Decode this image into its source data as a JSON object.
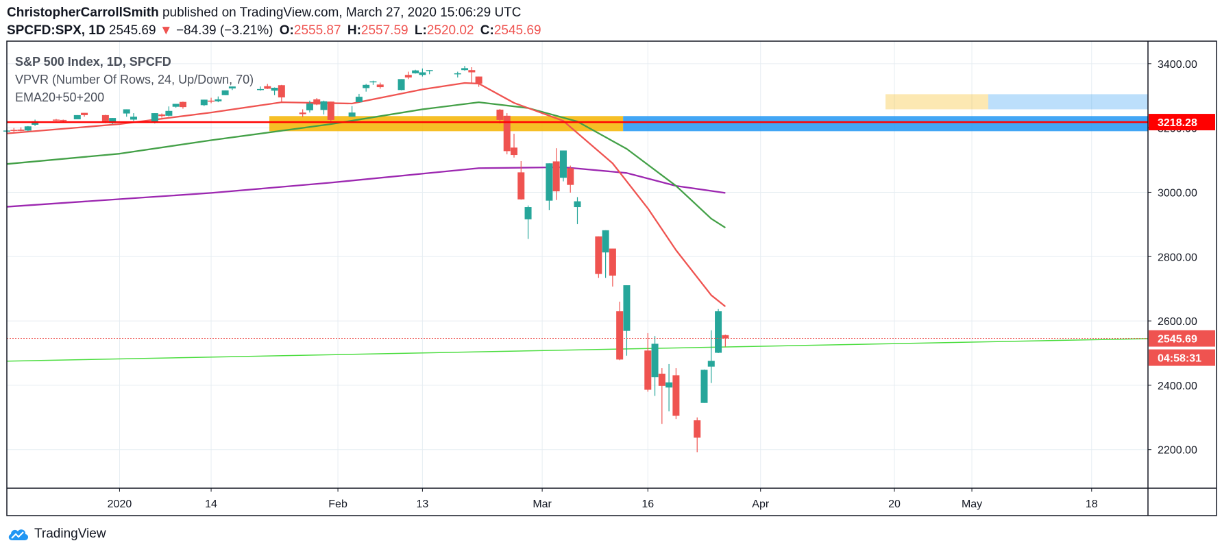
{
  "header": {
    "author": "ChristopherCarrollSmith",
    "published": "published on TradingView.com, March 27, 2020 15:06:29 UTC",
    "symbol": "SPCFD:SPX, 1D",
    "last": "2545.69",
    "change": "−84.39 (−3.21%)",
    "o_label": "O:",
    "o": "2555.87",
    "h_label": "H:",
    "h": "2557.59",
    "l_label": "L:",
    "l": "2520.02",
    "c_label": "C:",
    "c": "2545.69"
  },
  "footer": {
    "brand": "TradingView"
  },
  "colors": {
    "up": "#26a69a",
    "down": "#ef5350",
    "ema20": "#ef5350",
    "ema50": "#43a047",
    "ema200": "#9c27b0",
    "hline": "#ff0000",
    "trend": "#4cdd40",
    "grid": "#e6edf2",
    "axis": "#131722"
  },
  "chart_data": {
    "type": "candlestick",
    "title": "S&P 500 Index, 1D, SPCFD",
    "indicators": [
      "VPVR (Number Of Rows, 24, Up/Down, 70)",
      "EMA20+50+200"
    ],
    "ylim": [
      2080,
      3470
    ],
    "y_ticks": [
      "3400.00",
      "3200.00",
      "3000.00",
      "2800.00",
      "2600.00",
      "2400.00",
      "2200.00"
    ],
    "y_tick_values": [
      3400,
      3200,
      3000,
      2800,
      2600,
      2400,
      2200
    ],
    "x_range": [
      "2019-12-16",
      "2020-05-26"
    ],
    "x_ticks": [
      {
        "label": "2020",
        "date": "2020-01-01"
      },
      {
        "label": "14",
        "date": "2020-01-14"
      },
      {
        "label": "Feb",
        "date": "2020-02-01"
      },
      {
        "label": "13",
        "date": "2020-02-13"
      },
      {
        "label": "Mar",
        "date": "2020-03-01"
      },
      {
        "label": "16",
        "date": "2020-03-16"
      },
      {
        "label": "Apr",
        "date": "2020-04-01"
      },
      {
        "label": "20",
        "date": "2020-04-20"
      },
      {
        "label": "May",
        "date": "2020-05-01"
      },
      {
        "label": "18",
        "date": "2020-05-18"
      }
    ],
    "candles": [
      {
        "date": "2019-12-16",
        "o": 3190,
        "h": 3198,
        "l": 3186,
        "c": 3192
      },
      {
        "date": "2019-12-17",
        "o": 3194,
        "h": 3200,
        "l": 3188,
        "c": 3192
      },
      {
        "date": "2019-12-18",
        "o": 3195,
        "h": 3202,
        "l": 3190,
        "c": 3191
      },
      {
        "date": "2019-12-19",
        "o": 3192,
        "h": 3206,
        "l": 3190,
        "c": 3205
      },
      {
        "date": "2019-12-20",
        "o": 3210,
        "h": 3226,
        "l": 3206,
        "c": 3221
      },
      {
        "date": "2019-12-23",
        "o": 3226,
        "h": 3228,
        "l": 3222,
        "c": 3224
      },
      {
        "date": "2019-12-24",
        "o": 3225,
        "h": 3226,
        "l": 3220,
        "c": 3223
      },
      {
        "date": "2019-12-26",
        "o": 3227,
        "h": 3240,
        "l": 3227,
        "c": 3240
      },
      {
        "date": "2019-12-27",
        "o": 3247,
        "h": 3247,
        "l": 3235,
        "c": 3240
      },
      {
        "date": "2019-12-30",
        "o": 3240,
        "h": 3241,
        "l": 3215,
        "c": 3221
      },
      {
        "date": "2019-12-31",
        "o": 3215,
        "h": 3231,
        "l": 3212,
        "c": 3231
      },
      {
        "date": "2020-01-02",
        "o": 3245,
        "h": 3258,
        "l": 3235,
        "c": 3258
      },
      {
        "date": "2020-01-03",
        "o": 3226,
        "h": 3246,
        "l": 3222,
        "c": 3235
      },
      {
        "date": "2020-01-06",
        "o": 3217,
        "h": 3246,
        "l": 3214,
        "c": 3246
      },
      {
        "date": "2020-01-07",
        "o": 3242,
        "h": 3245,
        "l": 3232,
        "c": 3237
      },
      {
        "date": "2020-01-08",
        "o": 3238,
        "h": 3267,
        "l": 3236,
        "c": 3253
      },
      {
        "date": "2020-01-09",
        "o": 3266,
        "h": 3275,
        "l": 3263,
        "c": 3275
      },
      {
        "date": "2020-01-10",
        "o": 3281,
        "h": 3282,
        "l": 3260,
        "c": 3265
      },
      {
        "date": "2020-01-13",
        "o": 3271,
        "h": 3288,
        "l": 3268,
        "c": 3288
      },
      {
        "date": "2020-01-14",
        "o": 3285,
        "h": 3294,
        "l": 3277,
        "c": 3283
      },
      {
        "date": "2020-01-15",
        "o": 3283,
        "h": 3298,
        "l": 3280,
        "c": 3289
      },
      {
        "date": "2020-01-16",
        "o": 3302,
        "h": 3317,
        "l": 3302,
        "c": 3317
      },
      {
        "date": "2020-01-17",
        "o": 3323,
        "h": 3329,
        "l": 3318,
        "c": 3329
      },
      {
        "date": "2020-01-21",
        "o": 3321,
        "h": 3329,
        "l": 3316,
        "c": 3321
      },
      {
        "date": "2020-01-22",
        "o": 3330,
        "h": 3337,
        "l": 3321,
        "c": 3322
      },
      {
        "date": "2020-01-23",
        "o": 3316,
        "h": 3326,
        "l": 3302,
        "c": 3325
      },
      {
        "date": "2020-01-24",
        "o": 3333,
        "h": 3334,
        "l": 3281,
        "c": 3295
      },
      {
        "date": "2020-01-27",
        "o": 3248,
        "h": 3258,
        "l": 3234,
        "c": 3243
      },
      {
        "date": "2020-01-28",
        "o": 3255,
        "h": 3285,
        "l": 3248,
        "c": 3276
      },
      {
        "date": "2020-01-29",
        "o": 3289,
        "h": 3293,
        "l": 3271,
        "c": 3273
      },
      {
        "date": "2020-01-30",
        "o": 3256,
        "h": 3285,
        "l": 3242,
        "c": 3283
      },
      {
        "date": "2020-01-31",
        "o": 3282,
        "h": 3282,
        "l": 3214,
        "c": 3225
      },
      {
        "date": "2020-02-03",
        "o": 3235,
        "h": 3268,
        "l": 3235,
        "c": 3248
      },
      {
        "date": "2020-02-04",
        "o": 3280,
        "h": 3306,
        "l": 3280,
        "c": 3297
      },
      {
        "date": "2020-02-05",
        "o": 3324,
        "h": 3337,
        "l": 3313,
        "c": 3334
      },
      {
        "date": "2020-02-06",
        "o": 3344,
        "h": 3347,
        "l": 3334,
        "c": 3345
      },
      {
        "date": "2020-02-07",
        "o": 3335,
        "h": 3341,
        "l": 3322,
        "c": 3327
      },
      {
        "date": "2020-02-10",
        "o": 3318,
        "h": 3352,
        "l": 3317,
        "c": 3352
      },
      {
        "date": "2020-02-11",
        "o": 3365,
        "h": 3375,
        "l": 3352,
        "c": 3357
      },
      {
        "date": "2020-02-12",
        "o": 3370,
        "h": 3381,
        "l": 3369,
        "c": 3379
      },
      {
        "date": "2020-02-13",
        "o": 3365,
        "h": 3385,
        "l": 3360,
        "c": 3373
      },
      {
        "date": "2020-02-14",
        "o": 3378,
        "h": 3380,
        "l": 3367,
        "c": 3380
      },
      {
        "date": "2020-02-18",
        "o": 3369,
        "h": 3375,
        "l": 3357,
        "c": 3370
      },
      {
        "date": "2020-02-19",
        "o": 3380,
        "h": 3393,
        "l": 3378,
        "c": 3386
      },
      {
        "date": "2020-02-20",
        "o": 3380,
        "h": 3389,
        "l": 3341,
        "c": 3373
      },
      {
        "date": "2020-02-21",
        "o": 3360,
        "h": 3360,
        "l": 3328,
        "c": 3338
      },
      {
        "date": "2020-02-24",
        "o": 3257,
        "h": 3259,
        "l": 3214,
        "c": 3225
      },
      {
        "date": "2020-02-25",
        "o": 3238,
        "h": 3246,
        "l": 3118,
        "c": 3128
      },
      {
        "date": "2020-02-26",
        "o": 3139,
        "h": 3182,
        "l": 3108,
        "c": 3116
      },
      {
        "date": "2020-02-27",
        "o": 3062,
        "h": 3097,
        "l": 2977,
        "c": 2978
      },
      {
        "date": "2020-02-28",
        "o": 2916,
        "h": 2959,
        "l": 2855,
        "c": 2954
      },
      {
        "date": "2020-03-02",
        "o": 2974,
        "h": 3090,
        "l": 2945,
        "c": 3090
      },
      {
        "date": "2020-03-03",
        "o": 3096,
        "h": 3137,
        "l": 2976,
        "c": 3003
      },
      {
        "date": "2020-03-04",
        "o": 3045,
        "h": 3130,
        "l": 3034,
        "c": 3130
      },
      {
        "date": "2020-03-05",
        "o": 3075,
        "h": 3083,
        "l": 2999,
        "c": 3023
      },
      {
        "date": "2020-03-06",
        "o": 2954,
        "h": 2985,
        "l": 2901,
        "c": 2972
      },
      {
        "date": "2020-03-09",
        "o": 2863,
        "h": 2863,
        "l": 2734,
        "c": 2746
      },
      {
        "date": "2020-03-10",
        "o": 2813,
        "h": 2882,
        "l": 2734,
        "c": 2882
      },
      {
        "date": "2020-03-11",
        "o": 2825,
        "h": 2825,
        "l": 2707,
        "c": 2741
      },
      {
        "date": "2020-03-12",
        "o": 2630,
        "h": 2660,
        "l": 2478,
        "c": 2480
      },
      {
        "date": "2020-03-13",
        "o": 2569,
        "h": 2711,
        "l": 2492,
        "c": 2711
      },
      {
        "date": "2020-03-16",
        "o": 2508,
        "h": 2562,
        "l": 2380,
        "c": 2386
      },
      {
        "date": "2020-03-17",
        "o": 2425,
        "h": 2553,
        "l": 2367,
        "c": 2529
      },
      {
        "date": "2020-03-18",
        "o": 2436,
        "h": 2453,
        "l": 2280,
        "c": 2398
      },
      {
        "date": "2020-03-19",
        "o": 2393,
        "h": 2466,
        "l": 2319,
        "c": 2409
      },
      {
        "date": "2020-03-20",
        "o": 2431,
        "h": 2453,
        "l": 2295,
        "c": 2305
      },
      {
        "date": "2020-03-23",
        "o": 2291,
        "h": 2300,
        "l": 2192,
        "c": 2237
      },
      {
        "date": "2020-03-24",
        "o": 2345,
        "h": 2449,
        "l": 2345,
        "c": 2448
      },
      {
        "date": "2020-03-25",
        "o": 2458,
        "h": 2571,
        "l": 2407,
        "c": 2476
      },
      {
        "date": "2020-03-26",
        "o": 2501,
        "h": 2637,
        "l": 2500,
        "c": 2630
      },
      {
        "date": "2020-03-27",
        "o": 2555.87,
        "h": 2557.59,
        "l": 2520.02,
        "c": 2545.69
      }
    ],
    "ema20": [
      [
        "2019-12-16",
        3183
      ],
      [
        "2020-01-01",
        3212
      ],
      [
        "2020-01-14",
        3248
      ],
      [
        "2020-01-24",
        3280
      ],
      [
        "2020-02-03",
        3276
      ],
      [
        "2020-02-13",
        3320
      ],
      [
        "2020-02-19",
        3340
      ],
      [
        "2020-02-21",
        3338
      ],
      [
        "2020-02-26",
        3278
      ],
      [
        "2020-03-04",
        3222
      ],
      [
        "2020-03-11",
        3090
      ],
      [
        "2020-03-16",
        2950
      ],
      [
        "2020-03-20",
        2820
      ],
      [
        "2020-03-25",
        2680
      ],
      [
        "2020-03-27",
        2645
      ]
    ],
    "ema50": [
      [
        "2019-12-16",
        3088
      ],
      [
        "2020-01-01",
        3120
      ],
      [
        "2020-01-14",
        3162
      ],
      [
        "2020-01-31",
        3212
      ],
      [
        "2020-02-13",
        3258
      ],
      [
        "2020-02-21",
        3280
      ],
      [
        "2020-02-28",
        3262
      ],
      [
        "2020-03-06",
        3220
      ],
      [
        "2020-03-13",
        3135
      ],
      [
        "2020-03-20",
        3020
      ],
      [
        "2020-03-25",
        2918
      ],
      [
        "2020-03-27",
        2890
      ]
    ],
    "ema200": [
      [
        "2019-12-16",
        2955
      ],
      [
        "2020-01-14",
        2998
      ],
      [
        "2020-01-31",
        3030
      ],
      [
        "2020-02-21",
        3075
      ],
      [
        "2020-03-04",
        3078
      ],
      [
        "2020-03-13",
        3060
      ],
      [
        "2020-03-20",
        3020
      ],
      [
        "2020-03-27",
        2998
      ]
    ],
    "horizontal_line": {
      "value": 3218.28,
      "label": "3218.28"
    },
    "last_price": {
      "value": 2545.69,
      "label": "2545.69",
      "countdown": "04:58:31"
    },
    "trend_line": {
      "start": [
        "2019-12-16",
        2475
      ],
      "end": [
        "2020-05-26",
        2545
      ]
    },
    "vpvr": [
      {
        "price_low": 3190,
        "price_high": 3237,
        "up_weight": 0.46,
        "down_weight": 0.31
      },
      {
        "price_low": 3258,
        "price_high": 3305,
        "up_weight": 0.14,
        "down_weight": 0.09
      }
    ]
  }
}
